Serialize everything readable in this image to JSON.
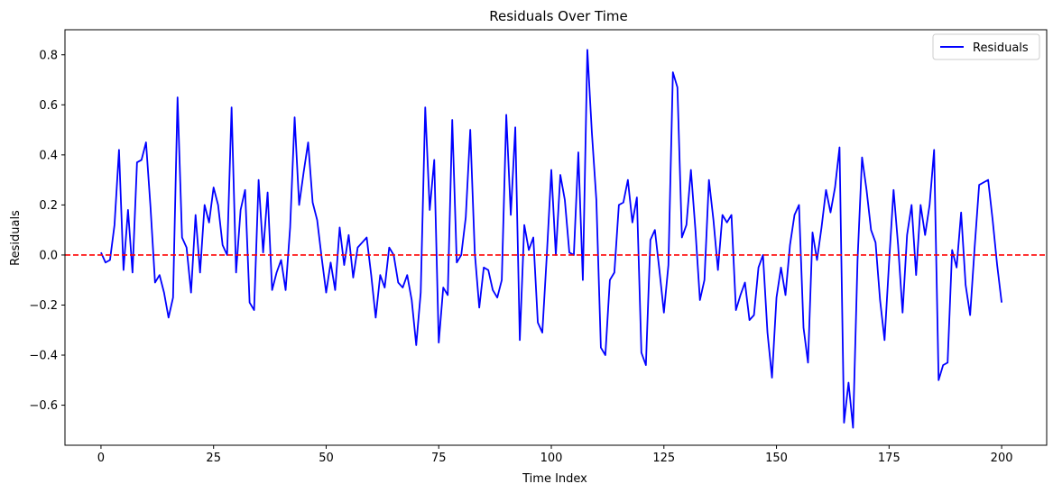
{
  "chart_data": {
    "type": "line",
    "title": "Residuals Over Time",
    "xlabel": "Time Index",
    "ylabel": "Residuals",
    "xlim": [
      -8,
      210
    ],
    "ylim": [
      -0.76,
      0.9
    ],
    "xticks": [
      0,
      25,
      50,
      75,
      100,
      125,
      150,
      175,
      200
    ],
    "yticks": [
      -0.6,
      -0.4,
      -0.2,
      0.0,
      0.2,
      0.4,
      0.6,
      0.8
    ],
    "ytick_labels": [
      "−0.6",
      "−0.4",
      "−0.2",
      "0.0",
      "0.2",
      "0.4",
      "0.6",
      "0.8"
    ],
    "grid": false,
    "legend": {
      "position": "top-right",
      "entries": [
        "Residuals"
      ]
    },
    "reference_line": {
      "y": 0,
      "style": "dashed",
      "color": "#ff0000"
    },
    "series": [
      {
        "name": "Residuals",
        "color": "#0000ff",
        "x": [
          0,
          1,
          2,
          3,
          4,
          5,
          6,
          7,
          8,
          9,
          10,
          11,
          12,
          13,
          14,
          15,
          16,
          17,
          18,
          19,
          20,
          21,
          22,
          23,
          24,
          25,
          26,
          27,
          28,
          29,
          30,
          31,
          32,
          33,
          34,
          35,
          36,
          37,
          38,
          39,
          40,
          41,
          42,
          43,
          44,
          45,
          46,
          47,
          48,
          49,
          50,
          51,
          52,
          53,
          54,
          55,
          56,
          57,
          58,
          59,
          60,
          61,
          62,
          63,
          64,
          65,
          66,
          67,
          68,
          69,
          70,
          71,
          72,
          73,
          74,
          75,
          76,
          77,
          78,
          79,
          80,
          81,
          82,
          83,
          84,
          85,
          86,
          87,
          88,
          89,
          90,
          91,
          92,
          93,
          94,
          95,
          96,
          97,
          98,
          99,
          100,
          101,
          102,
          103,
          104,
          105,
          106,
          107,
          108,
          109,
          110,
          111,
          112,
          113,
          114,
          115,
          116,
          117,
          118,
          119,
          120,
          121,
          122,
          123,
          124,
          125,
          126,
          127,
          128,
          129,
          130,
          131,
          132,
          133,
          134,
          135,
          136,
          137,
          138,
          139,
          140,
          141,
          142,
          143,
          144,
          145,
          146,
          147,
          148,
          149,
          150,
          151,
          152,
          153,
          154,
          155,
          156,
          157,
          158,
          159,
          160,
          161,
          162,
          163,
          164,
          165,
          166,
          167,
          168,
          169,
          170,
          171,
          172,
          173,
          174,
          175,
          176,
          177,
          178,
          179,
          180,
          181,
          182,
          183,
          184,
          185,
          186,
          187,
          188,
          189,
          190,
          191,
          192,
          193,
          194,
          195,
          196,
          197,
          198,
          199,
          200
        ],
        "y": [
          0.01,
          -0.03,
          -0.02,
          0.12,
          0.42,
          -0.06,
          0.18,
          -0.07,
          0.37,
          0.38,
          0.45,
          0.19,
          -0.11,
          -0.08,
          -0.15,
          -0.25,
          -0.17,
          0.63,
          0.07,
          0.03,
          -0.15,
          0.16,
          -0.07,
          0.2,
          0.13,
          0.27,
          0.2,
          0.04,
          0.0,
          0.59,
          -0.07,
          0.18,
          0.26,
          -0.19,
          -0.22,
          0.3,
          0.01,
          0.25,
          -0.14,
          -0.07,
          -0.02,
          -0.14,
          0.11,
          0.55,
          0.2,
          0.33,
          0.45,
          0.21,
          0.14,
          -0.01,
          -0.15,
          -0.03,
          -0.14,
          0.11,
          -0.04,
          0.08,
          -0.09,
          0.03,
          0.05,
          0.07,
          -0.08,
          -0.25,
          -0.08,
          -0.13,
          0.03,
          0.0,
          -0.11,
          -0.13,
          -0.08,
          -0.18,
          -0.36,
          -0.15,
          0.59,
          0.18,
          0.38,
          -0.35,
          -0.13,
          -0.16,
          0.54,
          -0.03,
          0.0,
          0.15,
          0.5,
          0.01,
          -0.21,
          -0.05,
          -0.06,
          -0.14,
          -0.17,
          -0.1,
          0.56,
          0.16,
          0.51,
          -0.34,
          0.12,
          0.02,
          0.07,
          -0.27,
          -0.31,
          0.0,
          0.34,
          0.0,
          0.32,
          0.22,
          0.01,
          0.0,
          0.41,
          -0.1,
          0.82,
          0.49,
          0.22,
          -0.37,
          -0.4,
          -0.1,
          -0.07,
          0.2,
          0.21,
          0.3,
          0.13,
          0.23,
          -0.39,
          -0.44,
          0.06,
          0.1,
          -0.06,
          -0.23,
          -0.04,
          0.73,
          0.67,
          0.07,
          0.12,
          0.34,
          0.1,
          -0.18,
          -0.1,
          0.3,
          0.14,
          -0.06,
          0.16,
          0.13,
          0.16,
          -0.22,
          -0.16,
          -0.11,
          -0.26,
          -0.24,
          -0.05,
          0.0,
          -0.31,
          -0.49,
          -0.17,
          -0.05,
          -0.16,
          0.04,
          0.16,
          0.2,
          -0.29,
          -0.43,
          0.09,
          -0.02,
          0.11,
          0.26,
          0.17,
          0.27,
          0.43,
          -0.67,
          -0.51,
          -0.69,
          -0.02,
          0.39,
          0.26,
          0.1,
          0.05,
          -0.18,
          -0.34,
          -0.03,
          0.26,
          0.04,
          -0.23,
          0.08,
          0.2,
          -0.08,
          0.2,
          0.08,
          0.2,
          0.42,
          -0.5,
          -0.44,
          -0.43,
          0.02,
          -0.05,
          0.17,
          -0.12,
          -0.24,
          0.03,
          0.28,
          0.29,
          0.3,
          0.14,
          -0.04,
          -0.19
        ]
      }
    ]
  }
}
